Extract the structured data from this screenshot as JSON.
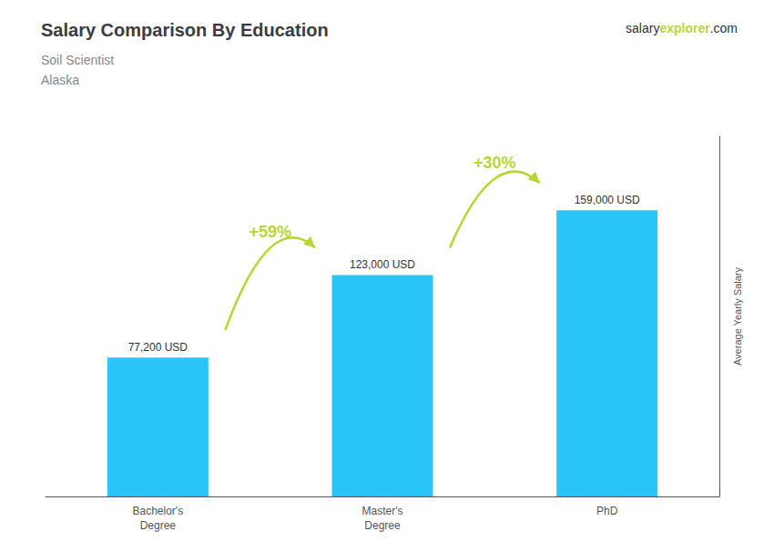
{
  "chart_data": {
    "type": "bar",
    "title": "Salary Comparison By Education",
    "subtitle": [
      "Soil Scientist",
      "Alaska"
    ],
    "categories": [
      "Bachelor's\nDegree",
      "Master's\nDegree",
      "PhD"
    ],
    "values": [
      77200,
      123000,
      159000
    ],
    "value_labels": [
      "77,200 USD",
      "123,000 USD",
      "159,000 USD"
    ],
    "data_labels": true,
    "color": "#29c5f6",
    "ylim": [
      0,
      200000
    ],
    "ylabel": "Average Yearly Salary",
    "annotations": [
      "+59%",
      "+30%"
    ],
    "brand": [
      "salary",
      "explorer",
      ".com"
    ],
    "tick_labels": "x",
    "grid": false
  }
}
